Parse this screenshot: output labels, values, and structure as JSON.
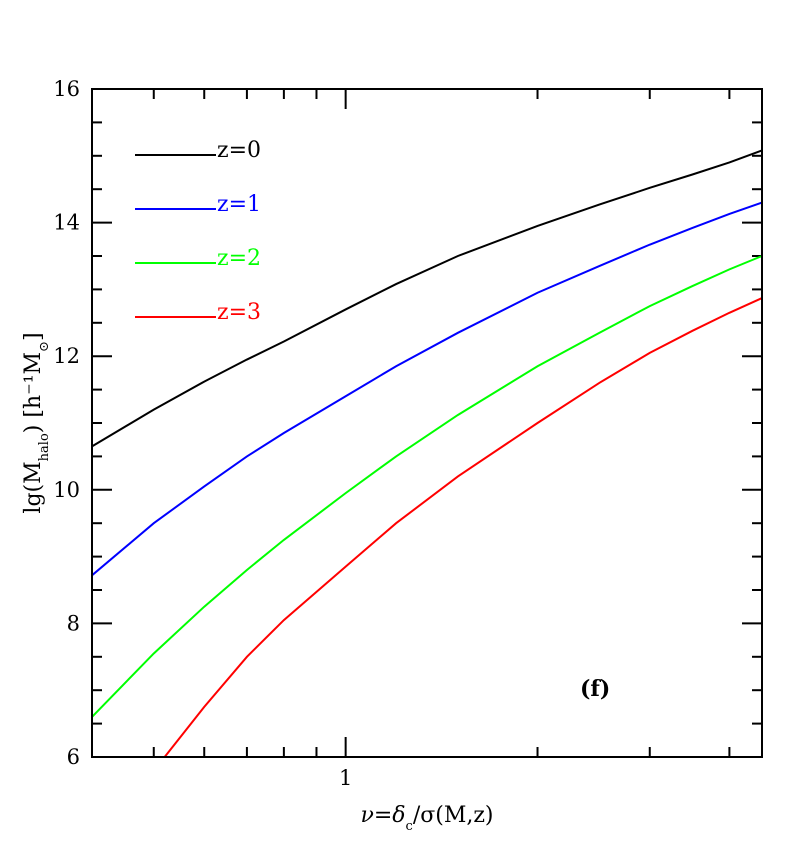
{
  "chart_data": {
    "type": "line",
    "title": "",
    "xlabel": "ν=δ_c/σ(M,z)",
    "ylabel": "lg(M_halo) [h⁻¹M_⊙]",
    "x_scale": "log",
    "xlim": [
      0.4,
      4.5
    ],
    "ylim": [
      6,
      16
    ],
    "x_ticks": [
      1
    ],
    "x_tick_labels": [
      "1"
    ],
    "y_ticks": [
      6,
      8,
      10,
      12,
      14,
      16
    ],
    "y_tick_labels": [
      "6",
      "8",
      "10",
      "12",
      "14",
      "16"
    ],
    "grid": false,
    "legend_position": "top-left",
    "annotation": "(f)",
    "series": [
      {
        "name": "z=0",
        "color": "#000000",
        "x": [
          0.4,
          0.5,
          0.6,
          0.7,
          0.8,
          1.0,
          1.2,
          1.5,
          2.0,
          2.5,
          3.0,
          3.5,
          4.0,
          4.5
        ],
        "y": [
          10.65,
          11.2,
          11.62,
          11.95,
          12.22,
          12.7,
          13.08,
          13.5,
          13.95,
          14.27,
          14.52,
          14.72,
          14.9,
          15.08
        ]
      },
      {
        "name": "z=1",
        "color": "#0000ff",
        "x": [
          0.4,
          0.5,
          0.6,
          0.7,
          0.8,
          1.0,
          1.2,
          1.5,
          2.0,
          2.5,
          3.0,
          3.5,
          4.0,
          4.5
        ],
        "y": [
          8.72,
          9.5,
          10.05,
          10.5,
          10.85,
          11.4,
          11.85,
          12.35,
          12.95,
          13.35,
          13.67,
          13.92,
          14.13,
          14.3
        ]
      },
      {
        "name": "z=2",
        "color": "#00ff00",
        "x": [
          0.4,
          0.5,
          0.6,
          0.7,
          0.8,
          1.0,
          1.2,
          1.5,
          2.0,
          2.5,
          3.0,
          3.5,
          4.0,
          4.5
        ],
        "y": [
          6.6,
          7.55,
          8.25,
          8.8,
          9.25,
          9.95,
          10.5,
          11.12,
          11.85,
          12.35,
          12.75,
          13.05,
          13.3,
          13.5
        ]
      },
      {
        "name": "z=3",
        "color": "#ff0000",
        "x": [
          0.52,
          0.6,
          0.7,
          0.8,
          1.0,
          1.2,
          1.5,
          2.0,
          2.5,
          3.0,
          3.5,
          4.0,
          4.5
        ],
        "y": [
          6.0,
          6.75,
          7.5,
          8.05,
          8.85,
          9.5,
          10.2,
          11.0,
          11.6,
          12.05,
          12.38,
          12.65,
          12.87
        ]
      }
    ]
  }
}
